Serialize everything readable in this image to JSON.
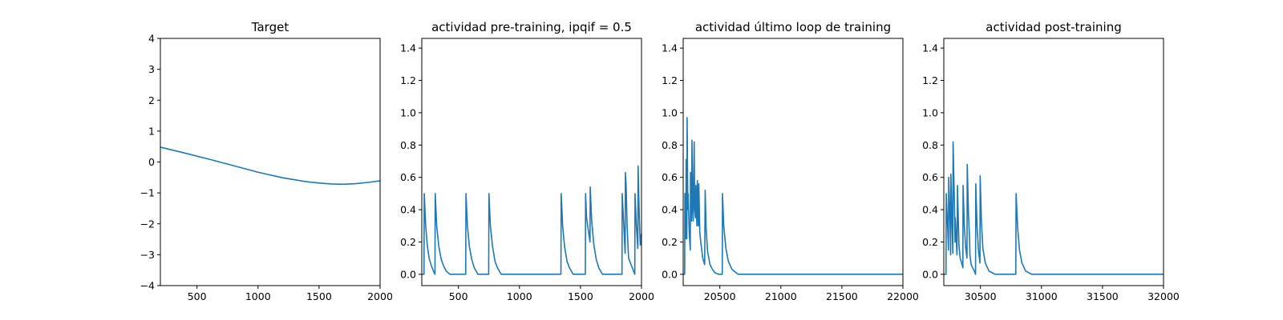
{
  "chart_data": [
    {
      "type": "line",
      "title": "Target",
      "xlim": [
        200,
        2000
      ],
      "ylim": [
        -4,
        4
      ],
      "xticks": [
        500,
        1000,
        1500,
        2000
      ],
      "yticks": [
        -4,
        -3,
        -2,
        -1,
        0,
        1,
        2,
        3,
        4
      ],
      "xticklabels": [
        "500",
        "1000",
        "1500",
        "2000"
      ],
      "yticklabels": [
        "−4",
        "−3",
        "−2",
        "−1",
        "0",
        "1",
        "2",
        "3",
        "4"
      ],
      "series": [
        {
          "x": [
            200,
            400,
            600,
            800,
            1000,
            1200,
            1400,
            1500,
            1600,
            1700,
            1800,
            1900,
            2000
          ],
          "y": [
            0.48,
            0.29,
            0.09,
            -0.12,
            -0.33,
            -0.51,
            -0.64,
            -0.68,
            -0.71,
            -0.72,
            -0.7,
            -0.66,
            -0.61
          ]
        }
      ]
    },
    {
      "type": "line",
      "title": "actividad pre-training, ipqif = 0.5",
      "xlim": [
        200,
        2000
      ],
      "ylim": [
        -0.07,
        1.46
      ],
      "xticks": [
        500,
        1000,
        1500,
        2000
      ],
      "yticks": [
        0.0,
        0.2,
        0.4,
        0.6,
        0.8,
        1.0,
        1.2,
        1.4
      ],
      "xticklabels": [
        "500",
        "1000",
        "1500",
        "2000"
      ],
      "yticklabels": [
        "0.0",
        "0.2",
        "0.4",
        "0.6",
        "0.8",
        "1.0",
        "1.2",
        "1.4"
      ],
      "series": [
        {
          "x": [
            200,
            218,
            220,
            232,
            245,
            260,
            275,
            295,
            308,
            310,
            322,
            340,
            360,
            380,
            400,
            430,
            560,
            562,
            574,
            590,
            610,
            630,
            660,
            748,
            750,
            762,
            780,
            800,
            820,
            850,
            1340,
            1342,
            1354,
            1370,
            1390,
            1410,
            1440,
            1540,
            1542,
            1550,
            1578,
            1580,
            1592,
            1610,
            1630,
            1650,
            1680,
            1840,
            1842,
            1855,
            1866,
            1868,
            1874,
            1882,
            1894,
            1945,
            1947,
            1958,
            1970,
            1972,
            1982,
            1990,
            2000
          ],
          "y": [
            0.0,
            0.0,
            0.5,
            0.3,
            0.18,
            0.1,
            0.06,
            0.02,
            0.0,
            0.5,
            0.3,
            0.17,
            0.09,
            0.05,
            0.02,
            0.0,
            0.0,
            0.5,
            0.3,
            0.17,
            0.09,
            0.04,
            0.0,
            0.0,
            0.5,
            0.3,
            0.17,
            0.08,
            0.04,
            0.0,
            0.0,
            0.5,
            0.3,
            0.17,
            0.08,
            0.04,
            0.0,
            0.0,
            0.5,
            0.35,
            0.2,
            0.54,
            0.33,
            0.18,
            0.09,
            0.04,
            0.0,
            0.0,
            0.5,
            0.3,
            0.13,
            0.63,
            0.55,
            0.3,
            0.1,
            0.0,
            0.5,
            0.3,
            0.16,
            0.67,
            0.35,
            0.18,
            0.25
          ]
        }
      ]
    },
    {
      "type": "line",
      "title": "actividad último loop de training",
      "xlim": [
        20200,
        22000
      ],
      "ylim": [
        -0.07,
        1.46
      ],
      "xticks": [
        20500,
        21000,
        21500,
        22000
      ],
      "yticks": [
        0.0,
        0.2,
        0.4,
        0.6,
        0.8,
        1.0,
        1.2,
        1.4
      ],
      "xticklabels": [
        "20500",
        "21000",
        "21500",
        "22000"
      ],
      "yticklabels": [
        "0.0",
        "0.2",
        "0.4",
        "0.6",
        "0.8",
        "1.0",
        "1.2",
        "1.4"
      ],
      "series": [
        {
          "x": [
            20200,
            20212,
            20214,
            20222,
            20224,
            20230,
            20232,
            20238,
            20240,
            20250,
            20258,
            20260,
            20268,
            20272,
            20278,
            20282,
            20290,
            20294,
            20300,
            20304,
            20312,
            20316,
            20324,
            20328,
            20336,
            20344,
            20360,
            20376,
            20380,
            20388,
            20400,
            20420,
            20440,
            20460,
            20490,
            20520,
            20522,
            20532,
            20550,
            20570,
            20600,
            20650,
            22000
          ],
          "y": [
            0.0,
            0.0,
            0.5,
            0.22,
            0.71,
            0.22,
            0.97,
            0.4,
            0.5,
            0.25,
            0.15,
            0.63,
            0.33,
            0.83,
            0.4,
            0.33,
            0.82,
            0.4,
            0.35,
            0.55,
            0.3,
            0.58,
            0.3,
            0.56,
            0.26,
            0.2,
            0.1,
            0.06,
            0.52,
            0.28,
            0.14,
            0.06,
            0.03,
            0.01,
            0.0,
            0.0,
            0.5,
            0.3,
            0.16,
            0.08,
            0.03,
            0.0,
            0.0
          ]
        }
      ]
    },
    {
      "type": "line",
      "title": "actividad post-training",
      "xlim": [
        30200,
        32000
      ],
      "ylim": [
        -0.07,
        1.46
      ],
      "xticks": [
        30500,
        31000,
        31500,
        32000
      ],
      "yticks": [
        0.0,
        0.2,
        0.4,
        0.6,
        0.8,
        1.0,
        1.2,
        1.4
      ],
      "xticklabels": [
        "30500",
        "31000",
        "31500",
        "32000"
      ],
      "yticklabels": [
        "0.0",
        "0.2",
        "0.4",
        "0.6",
        "0.8",
        "1.0",
        "1.2",
        "1.4"
      ],
      "series": [
        {
          "x": [
            30200,
            30218,
            30220,
            30232,
            30238,
            30240,
            30252,
            30256,
            30258,
            30268,
            30274,
            30276,
            30288,
            30292,
            30294,
            30304,
            30308,
            30312,
            30320,
            30324,
            30334,
            30350,
            30356,
            30358,
            30368,
            30380,
            30390,
            30392,
            30402,
            30412,
            30414,
            30424,
            30436,
            30450,
            30460,
            30462,
            30472,
            30484,
            30496,
            30498,
            30508,
            30520,
            30540,
            30570,
            30620,
            30790,
            30792,
            30805,
            30820,
            30840,
            30870,
            30920,
            32000
          ],
          "y": [
            0.0,
            0.0,
            0.5,
            0.28,
            0.15,
            0.6,
            0.3,
            0.12,
            0.62,
            0.3,
            0.13,
            0.82,
            0.4,
            0.2,
            0.35,
            0.18,
            0.12,
            0.55,
            0.3,
            0.18,
            0.1,
            0.06,
            0.04,
            0.55,
            0.3,
            0.16,
            0.1,
            0.68,
            0.38,
            0.2,
            0.12,
            0.06,
            0.04,
            0.02,
            0.0,
            0.56,
            0.3,
            0.15,
            0.07,
            0.61,
            0.33,
            0.16,
            0.07,
            0.02,
            0.0,
            0.0,
            0.5,
            0.29,
            0.15,
            0.07,
            0.02,
            0.0,
            0.0
          ]
        }
      ]
    }
  ]
}
